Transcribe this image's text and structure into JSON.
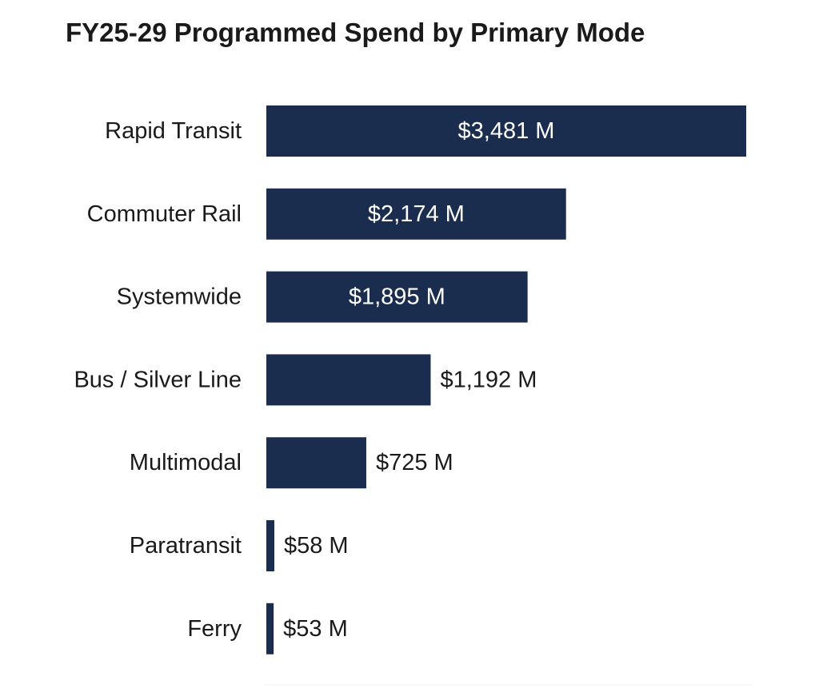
{
  "chart_data": {
    "type": "bar",
    "orientation": "horizontal",
    "title": "FY25-29 Programmed Spend by Primary Mode",
    "categories": [
      "Rapid Transit",
      "Commuter Rail",
      "Systemwide",
      "Bus / Silver Line",
      "Multimodal",
      "Paratransit",
      "Ferry"
    ],
    "values": [
      3481,
      2174,
      1895,
      1192,
      725,
      58,
      53
    ],
    "value_labels": [
      "$3,481 M",
      "$2,174 M",
      "$1,895 M",
      "$1,192 M",
      "$725 M",
      "$58 M",
      "$53 M"
    ],
    "units": "$ M",
    "xlim": [
      0,
      3481
    ],
    "xlabel": "",
    "ylabel": "",
    "grid": false,
    "legend": "none",
    "bar_color": "#1b2d4f",
    "inside_label_color": "#ffffff",
    "outside_label_color": "#1a1a1a"
  }
}
